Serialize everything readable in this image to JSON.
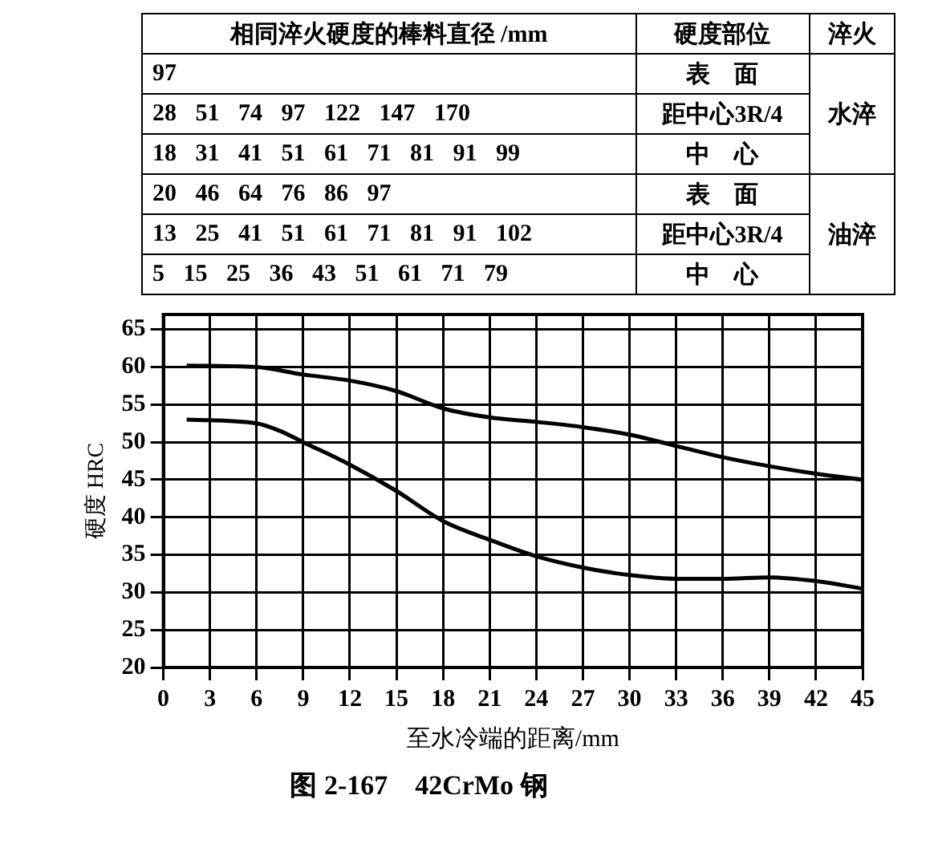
{
  "chart_data": {
    "type": "line",
    "title": "图 2-167　42CrMo 钢",
    "xlabel": "至水冷端的距离/mm",
    "ylabel": "硬度 HRC",
    "annotations": [
      "相同淬火硬度的棒料直径 /mm",
      "硬度部位",
      "淬火",
      "97",
      "28 51 74 97 122 147 170",
      "18 31 41 51 61 71 81 91 99",
      "20 46 64 76 86 97",
      "13 25 41 51 61 71 81 91 102",
      "5 15 25 36 43 51 61 71 79",
      "表　面",
      "距中心3R/4",
      "中　心",
      "表　面",
      "距中心3R/4",
      "中　心",
      "水淬",
      "油淬"
    ],
    "series": [
      {
        "color": "#000000",
        "x": [
          1.5,
          6,
          9,
          12,
          15,
          18,
          21,
          24,
          27,
          30,
          33,
          36,
          39,
          42,
          45
        ],
        "values": [
          60.2,
          60,
          59,
          58.2,
          56.8,
          54.5,
          53.3,
          52.7,
          52,
          51,
          49.5,
          48,
          46.8,
          45.8,
          45
        ]
      },
      {
        "color": "#000000",
        "x": [
          1.5,
          6,
          7.5,
          9,
          12,
          15,
          18,
          21,
          24,
          27,
          30,
          33,
          36,
          39,
          42,
          45
        ],
        "values": [
          53,
          52.5,
          51.5,
          50,
          47,
          43.5,
          39.5,
          37,
          34.8,
          33.3,
          32.3,
          31.8,
          31.8,
          32,
          31.5,
          30.5
        ]
      }
    ],
    "xlim": [
      0,
      45
    ],
    "xticks": [
      0,
      3,
      6,
      9,
      12,
      15,
      18,
      21,
      24,
      27,
      30,
      33,
      36,
      39,
      42,
      45
    ],
    "ylim": [
      20,
      67
    ],
    "yticks": [
      20,
      25,
      30,
      35,
      40,
      45,
      50,
      55,
      60,
      65
    ],
    "grid": true,
    "legend": false,
    "marker": "none",
    "line_style": "solid"
  }
}
